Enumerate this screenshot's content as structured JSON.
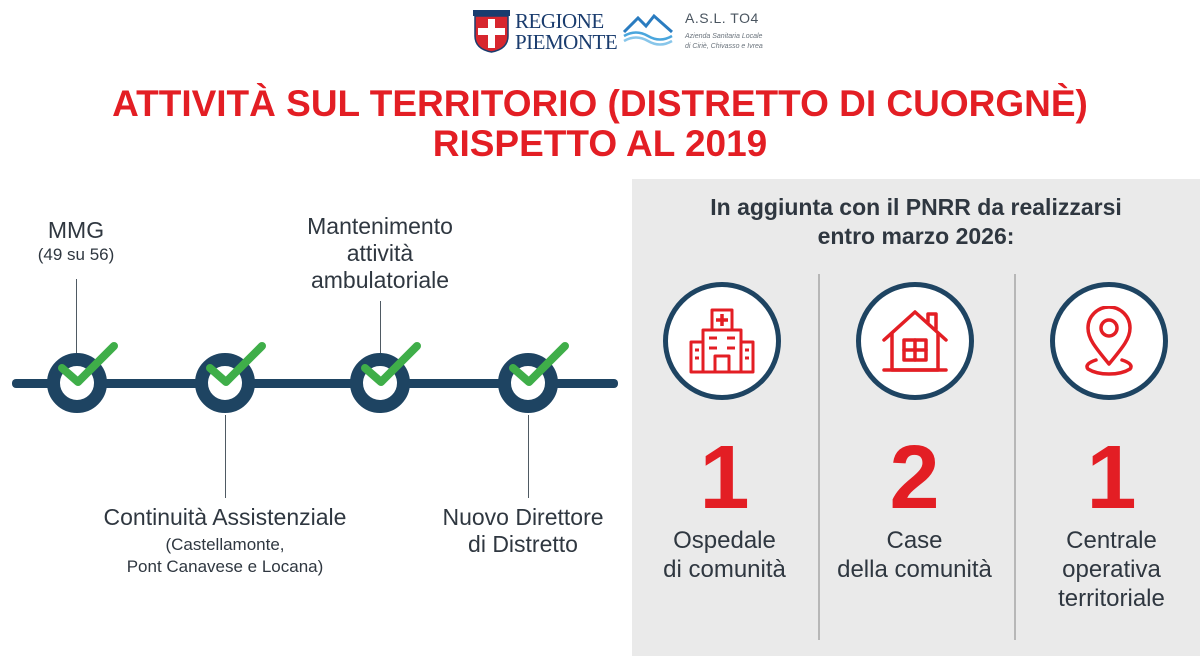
{
  "header": {
    "regione_logo": {
      "line1": "REGIONE",
      "line2": "PIEMONTE"
    },
    "asl_logo": {
      "name": "A.S.L. TO4",
      "subtitle": "Azienda Sanitaria Locale\ndi Ciriè, Chivasso e Ivrea"
    },
    "title_line1": "ATTIVITÀ SUL TERRITORIO (DISTRETTO DI CUORGNÈ)",
    "title_line2": "RISPETTO AL 2019"
  },
  "timeline": {
    "items": [
      {
        "label": "MMG",
        "detail": "(49 su 56)",
        "status_icon": "check-icon"
      },
      {
        "label": "Continuità Assistenziale",
        "detail_line1": "(Castellamonte,",
        "detail_line2": "Pont Canavese e Locana)",
        "status_icon": "check-icon"
      },
      {
        "label_line1": "Mantenimento",
        "label_line2": "attività",
        "label_line3": "ambulatoriale",
        "status_icon": "check-icon"
      },
      {
        "label_line1": "Nuovo Direttore",
        "label_line2": "di Distretto",
        "status_icon": "check-icon"
      }
    ],
    "colors": {
      "line": "#1e4462",
      "check": "#3fae49"
    }
  },
  "pnrr": {
    "heading_line1": "In aggiunta con il PNRR da realizzarsi",
    "heading_line2": "entro marzo 2026:",
    "columns": [
      {
        "count": "1",
        "label_line1": "Ospedale",
        "label_line2": "di comunità",
        "icon": "hospital-icon"
      },
      {
        "count": "2",
        "label_line1": "Case",
        "label_line2": "della comunità",
        "icon": "house-icon"
      },
      {
        "count": "1",
        "label_line1": "Centrale",
        "label_line2": "operativa",
        "label_line3": "territoriale",
        "icon": "location-pin-icon"
      }
    ],
    "colors": {
      "accent": "#e31e24",
      "panel": "#eaeaea",
      "circle_border": "#1e4462"
    }
  }
}
